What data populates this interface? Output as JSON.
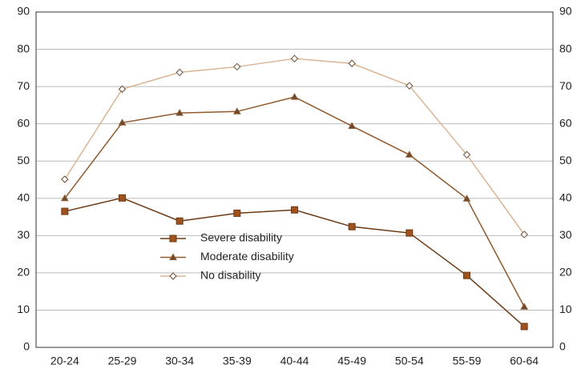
{
  "chart_data": {
    "type": "line",
    "categories": [
      "20-24",
      "25-29",
      "30-34",
      "35-39",
      "40-44",
      "45-49",
      "50-54",
      "55-59",
      "60-64"
    ],
    "series": [
      {
        "name": "Severe disability",
        "color": "#6b3a14",
        "marker": "square",
        "values": [
          36.5,
          40.1,
          33.9,
          36.0,
          36.9,
          32.4,
          30.7,
          19.3,
          5.6
        ]
      },
      {
        "name": "Moderate disability",
        "color": "#8f5a2e",
        "marker": "triangle",
        "values": [
          40.0,
          60.3,
          62.9,
          63.3,
          67.2,
          59.4,
          51.7,
          39.9,
          10.9
        ]
      },
      {
        "name": "No disability",
        "color": "#d9b594",
        "marker": "diamond",
        "values": [
          45.1,
          69.3,
          73.8,
          75.3,
          77.5,
          76.2,
          70.2,
          51.7,
          30.3
        ]
      }
    ],
    "ylim": [
      0,
      90
    ],
    "yticks": [
      0,
      10,
      20,
      30,
      40,
      50,
      60,
      70,
      80,
      90
    ],
    "grid": true
  }
}
